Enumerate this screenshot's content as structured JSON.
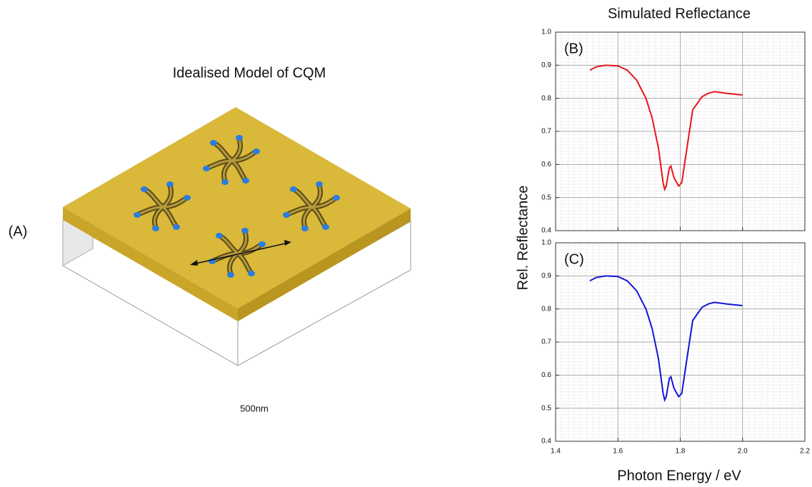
{
  "figure": {
    "panel_label": "(A)",
    "model_title": "Idealised Model of CQM",
    "scale_label": "500nm",
    "title": "Simulated Reflectance",
    "ylabel": "Rel. Reflectance",
    "xlabel": "Photon Energy / eV"
  },
  "chart_data": [
    {
      "type": "line",
      "panel_label": "(B)",
      "grid": true,
      "minor_grid": true,
      "xlim": [
        1.4,
        2.2
      ],
      "ylim": [
        0.4,
        1.0
      ],
      "xticks": [
        1.4,
        1.6,
        1.8,
        2.0,
        2.2
      ],
      "yticks": [
        0.4,
        0.5,
        0.6,
        0.7,
        0.8,
        0.9,
        {
          "value": 1.0,
          "label": "1.0"
        }
      ],
      "x": [
        1.51,
        1.53,
        1.56,
        1.6,
        1.63,
        1.66,
        1.69,
        1.71,
        1.73,
        1.745,
        1.75,
        1.755,
        1.765,
        1.77,
        1.78,
        1.795,
        1.805,
        1.82,
        1.84,
        1.87,
        1.89,
        1.91,
        1.95,
        2.0
      ],
      "series": [
        {
          "color": "#e8141c",
          "values": [
            0.885,
            0.895,
            0.9,
            0.898,
            0.885,
            0.855,
            0.8,
            0.74,
            0.65,
            0.545,
            0.525,
            0.535,
            0.59,
            0.595,
            0.56,
            0.535,
            0.545,
            0.64,
            0.765,
            0.805,
            0.815,
            0.82,
            0.815,
            0.81
          ]
        }
      ]
    },
    {
      "type": "line",
      "panel_label": "(C)",
      "grid": true,
      "minor_grid": true,
      "xlim": [
        1.4,
        2.2
      ],
      "ylim": [
        0.4,
        1.0
      ],
      "xticks": [
        1.4,
        1.6,
        1.8,
        {
          "value": 2.0,
          "label": "2.0"
        },
        2.2
      ],
      "yticks": [
        0.4,
        0.5,
        0.6,
        0.7,
        0.8,
        0.9,
        {
          "value": 1.0,
          "label": "1.0"
        }
      ],
      "x": [
        1.51,
        1.53,
        1.56,
        1.6,
        1.63,
        1.66,
        1.69,
        1.71,
        1.73,
        1.745,
        1.75,
        1.755,
        1.765,
        1.77,
        1.78,
        1.795,
        1.805,
        1.82,
        1.84,
        1.87,
        1.89,
        1.91,
        1.95,
        2.0
      ],
      "series": [
        {
          "color": "#1414d8",
          "values": [
            0.885,
            0.895,
            0.9,
            0.898,
            0.885,
            0.855,
            0.8,
            0.74,
            0.65,
            0.545,
            0.525,
            0.535,
            0.59,
            0.595,
            0.56,
            0.535,
            0.545,
            0.64,
            0.765,
            0.805,
            0.815,
            0.82,
            0.815,
            0.81
          ]
        }
      ]
    }
  ]
}
